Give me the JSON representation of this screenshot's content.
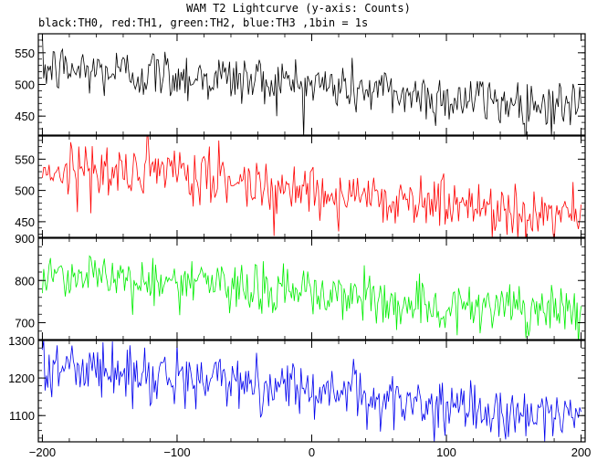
{
  "chart_data": {
    "type": "line",
    "title": "WAM T2 Lightcurve (y-axis: Counts)",
    "subtitle": "black:TH0, red:TH1, green:TH2, blue:TH3 ,1bin = 1s",
    "x_range": [
      -203,
      203
    ],
    "x_ticks": [
      -200,
      -100,
      0,
      100,
      200
    ],
    "x_tick_labels": [
      "−200",
      "−100",
      "0",
      "100",
      "200"
    ],
    "panels": [
      {
        "series_name": "TH0",
        "color": "#000000",
        "ylim": [
          420,
          580
        ],
        "y_ticks": [
          450,
          500,
          550
        ],
        "y_tick_labels": [
          "450",
          "500",
          "550"
        ],
        "trend": [
          [
            -200,
            525
          ],
          [
            -100,
            515
          ],
          [
            0,
            500
          ],
          [
            100,
            478
          ],
          [
            200,
            466
          ]
        ],
        "noise": 21
      },
      {
        "series_name": "TH1",
        "color": "#ff0000",
        "ylim": [
          425,
          587
        ],
        "y_ticks": [
          450,
          500,
          550
        ],
        "y_tick_labels": [
          "450",
          "500",
          "550"
        ],
        "trend": [
          [
            -200,
            535
          ],
          [
            -100,
            525
          ],
          [
            0,
            500
          ],
          [
            100,
            478
          ],
          [
            200,
            462
          ]
        ],
        "noise": 22
      },
      {
        "series_name": "TH2",
        "color": "#00ee00",
        "ylim": [
          660,
          900
        ],
        "y_ticks": [
          700,
          800,
          900
        ],
        "y_tick_labels": [
          "700",
          "800",
          "900"
        ],
        "trend": [
          [
            -200,
            820
          ],
          [
            -100,
            795
          ],
          [
            0,
            770
          ],
          [
            100,
            738
          ],
          [
            200,
            718
          ]
        ],
        "noise": 30
      },
      {
        "series_name": "TH3",
        "color": "#0000ee",
        "ylim": [
          1030,
          1300
        ],
        "y_ticks": [
          1100,
          1200,
          1300
        ],
        "y_tick_labels": [
          "1100",
          "1200",
          "1300"
        ],
        "trend": [
          [
            -200,
            1235
          ],
          [
            -100,
            1200
          ],
          [
            0,
            1175
          ],
          [
            100,
            1115
          ],
          [
            200,
            1100
          ]
        ],
        "noise": 35
      }
    ]
  }
}
